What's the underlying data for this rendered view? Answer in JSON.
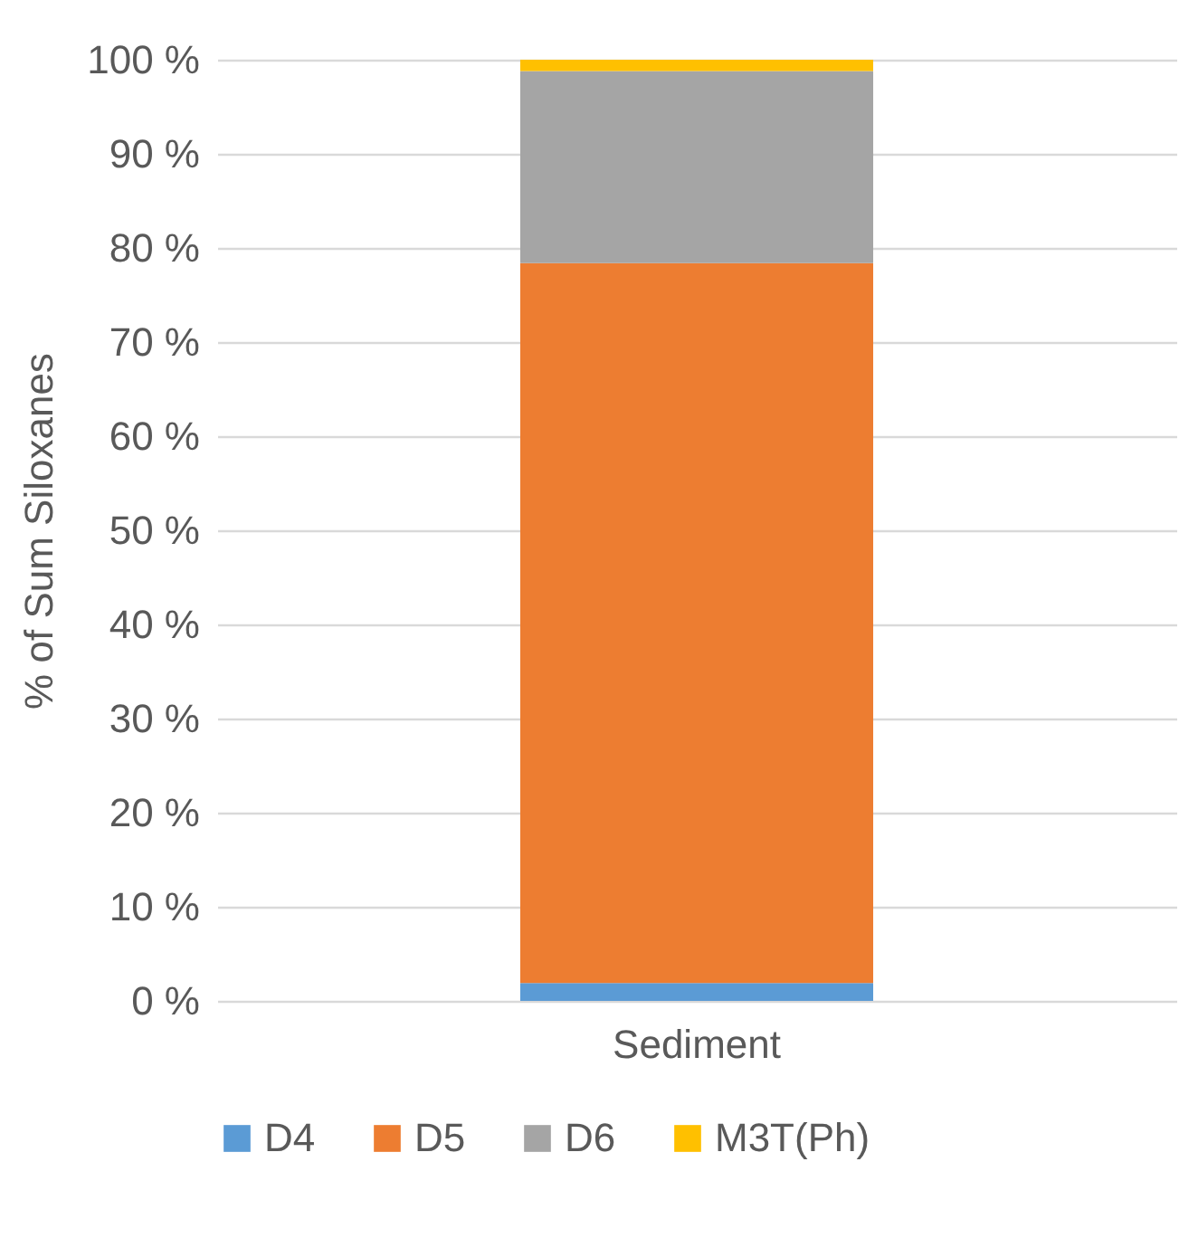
{
  "chart_data": {
    "type": "bar",
    "stacked": true,
    "ylabel": "% of Sum Siloxanes",
    "categories": [
      "Sediment"
    ],
    "series": [
      {
        "name": "D4",
        "color": "#5b9bd5",
        "values": [
          1.9
        ]
      },
      {
        "name": "D5",
        "color": "#ed7d31",
        "values": [
          76.5
        ]
      },
      {
        "name": "D6",
        "color": "#a5a5a5",
        "values": [
          20.4
        ]
      },
      {
        "name": "M3T(Ph)",
        "color": "#ffc000",
        "values": [
          1.2
        ]
      }
    ],
    "ylim": [
      0,
      100
    ],
    "yticks": [
      {
        "value": 0,
        "label": "0 %"
      },
      {
        "value": 10,
        "label": "10 %"
      },
      {
        "value": 20,
        "label": "20 %"
      },
      {
        "value": 30,
        "label": "30 %"
      },
      {
        "value": 40,
        "label": "40 %"
      },
      {
        "value": 50,
        "label": "50 %"
      },
      {
        "value": 60,
        "label": "60 %"
      },
      {
        "value": 70,
        "label": "70 %"
      },
      {
        "value": 80,
        "label": "80 %"
      },
      {
        "value": 90,
        "label": "90 %"
      },
      {
        "value": 100,
        "label": "100 %"
      }
    ],
    "grid": "y",
    "legend": "bottom"
  }
}
